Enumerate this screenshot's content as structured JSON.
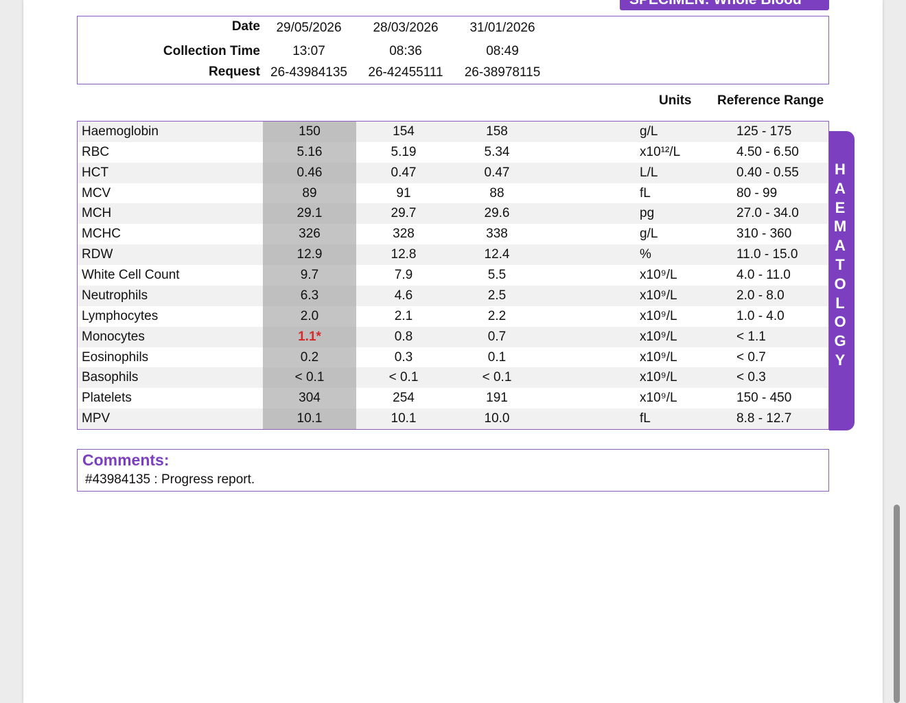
{
  "specimen_tab": {
    "label": "SPECIMEN: Whole Blood"
  },
  "header": {
    "labels": {
      "date": "Date",
      "collection_time": "Collection Time",
      "request": "Request"
    },
    "columns": [
      {
        "date": "29/05/2026",
        "time": "13:07",
        "request": "26-43984135"
      },
      {
        "date": "28/03/2026",
        "time": "08:36",
        "request": "26-42455111"
      },
      {
        "date": "31/01/2026",
        "time": "08:49",
        "request": "26-38978115"
      }
    ]
  },
  "column_headers": {
    "units": "Units",
    "reference_range": "Reference Range"
  },
  "results": [
    {
      "name": "Haemoglobin",
      "v1": "150",
      "v2": "154",
      "v3": "158",
      "unit": "g/L",
      "range": "125 - 175"
    },
    {
      "name": "RBC",
      "v1": "5.16",
      "v2": "5.19",
      "v3": "5.34",
      "unit": "x10¹²/L",
      "range": "4.50 - 6.50"
    },
    {
      "name": "HCT",
      "v1": "0.46",
      "v2": "0.47",
      "v3": "0.47",
      "unit": "L/L",
      "range": "0.40 - 0.55"
    },
    {
      "name": "MCV",
      "v1": "89",
      "v2": "91",
      "v3": "88",
      "unit": "fL",
      "range": "80 - 99"
    },
    {
      "name": "MCH",
      "v1": "29.1",
      "v2": "29.7",
      "v3": "29.6",
      "unit": "pg",
      "range": "27.0 - 34.0"
    },
    {
      "name": "MCHC",
      "v1": "326",
      "v2": "328",
      "v3": "338",
      "unit": "g/L",
      "range": "310 - 360"
    },
    {
      "name": "RDW",
      "v1": "12.9",
      "v2": "12.8",
      "v3": "12.4",
      "unit": "%",
      "range": "11.0 - 15.0"
    },
    {
      "name": "White Cell Count",
      "v1": "9.7",
      "v2": "7.9",
      "v3": "5.5",
      "unit": "x10⁹/L",
      "range": "4.0 - 11.0"
    },
    {
      "name": "Neutrophils",
      "v1": "6.3",
      "v2": "4.6",
      "v3": "2.5",
      "unit": "x10⁹/L",
      "range": "2.0 - 8.0"
    },
    {
      "name": "Lymphocytes",
      "v1": "2.0",
      "v2": "2.1",
      "v3": "2.2",
      "unit": "x10⁹/L",
      "range": "1.0 - 4.0"
    },
    {
      "name": "Monocytes",
      "v1": "1.1*",
      "v1_flag": true,
      "v2": "0.8",
      "v3": "0.7",
      "unit": "x10⁹/L",
      "range": "< 1.1"
    },
    {
      "name": "Eosinophils",
      "v1": "0.2",
      "v2": "0.3",
      "v3": "0.1",
      "unit": "x10⁹/L",
      "range": "< 0.7"
    },
    {
      "name": "Basophils",
      "v1": "< 0.1",
      "v2": "< 0.1",
      "v3": "< 0.1",
      "unit": "x10⁹/L",
      "range": "< 0.3"
    },
    {
      "name": "Platelets",
      "v1": "304",
      "v2": "254",
      "v3": "191",
      "unit": "x10⁹/L",
      "range": "150 - 450"
    },
    {
      "name": "MPV",
      "v1": "10.1",
      "v2": "10.1",
      "v3": "10.0",
      "unit": "fL",
      "range": "8.8 - 12.7"
    }
  ],
  "section_tab": {
    "label": "HAEMATOLOGY"
  },
  "comments": {
    "title": "Comments:",
    "text": "#43984135 : Progress report."
  },
  "colors": {
    "accent": "#7b3fbf",
    "flag": "#d42b2b",
    "current_column": "#c4c4c4"
  }
}
